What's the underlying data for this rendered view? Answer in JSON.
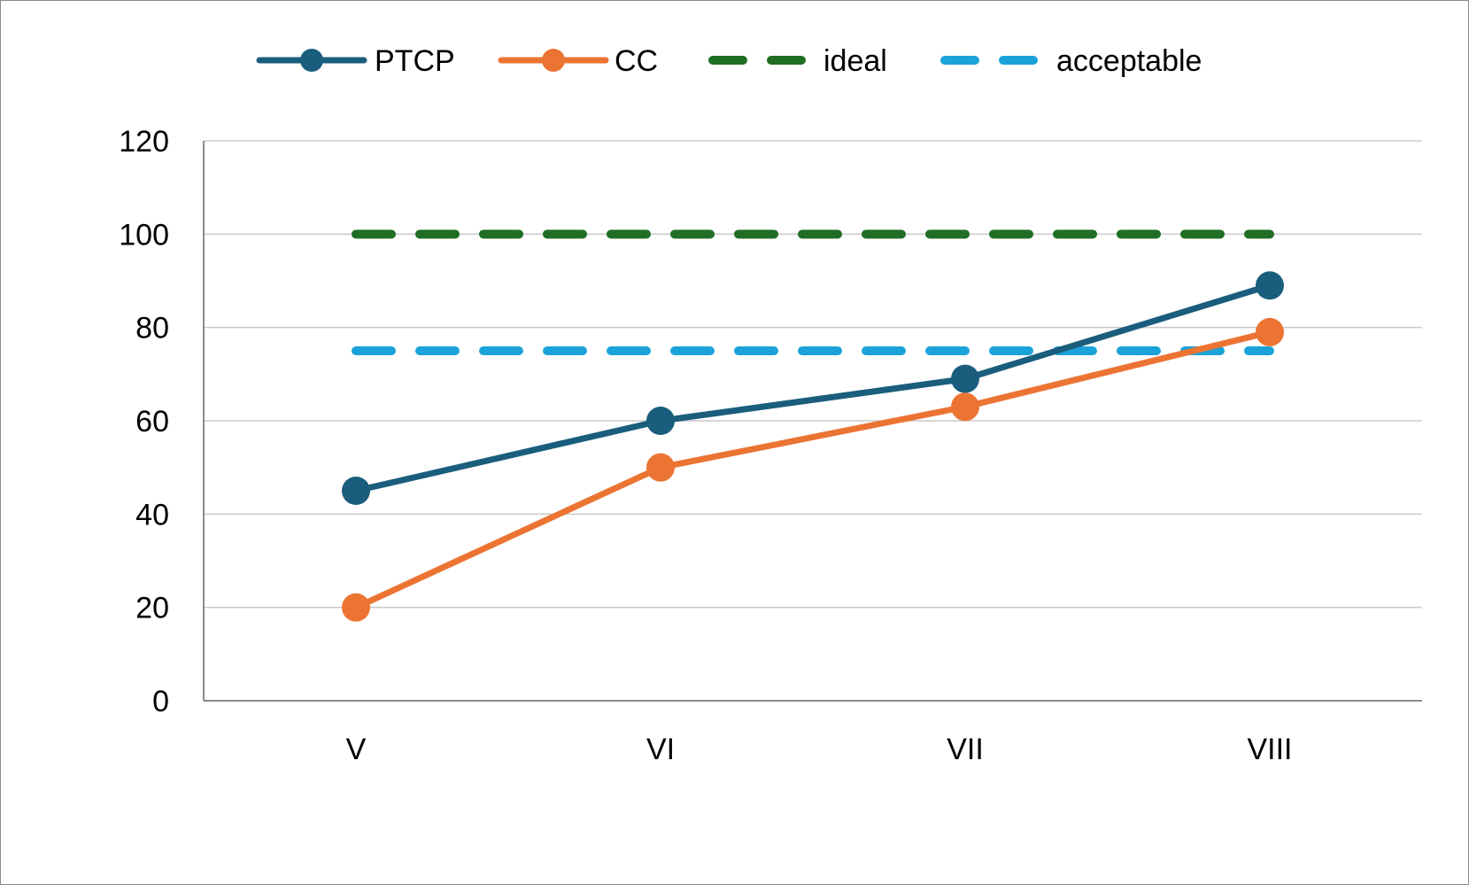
{
  "chart_data": {
    "type": "line",
    "title": "",
    "xlabel": "",
    "ylabel": "",
    "categories": [
      "V",
      "VI",
      "VII",
      "VIII"
    ],
    "ylim": [
      0,
      120
    ],
    "yticks": [
      0,
      20,
      40,
      60,
      80,
      100,
      120
    ],
    "grid": true,
    "legend_position": "top",
    "series": [
      {
        "name": "PTCP",
        "values": [
          45,
          60,
          69,
          89
        ],
        "color": "#1a5d7d",
        "style": "solid",
        "markers": true
      },
      {
        "name": "CC",
        "values": [
          20,
          50,
          63,
          79
        ],
        "color": "#ec7433",
        "style": "solid",
        "markers": true
      },
      {
        "name": "ideal",
        "values": [
          100,
          100,
          100,
          100
        ],
        "color": "#1f6e24",
        "style": "dashed",
        "markers": false
      },
      {
        "name": "acceptable",
        "values": [
          75,
          75,
          75,
          75
        ],
        "color": "#1ba3d9",
        "style": "dashed",
        "markers": false
      }
    ]
  }
}
